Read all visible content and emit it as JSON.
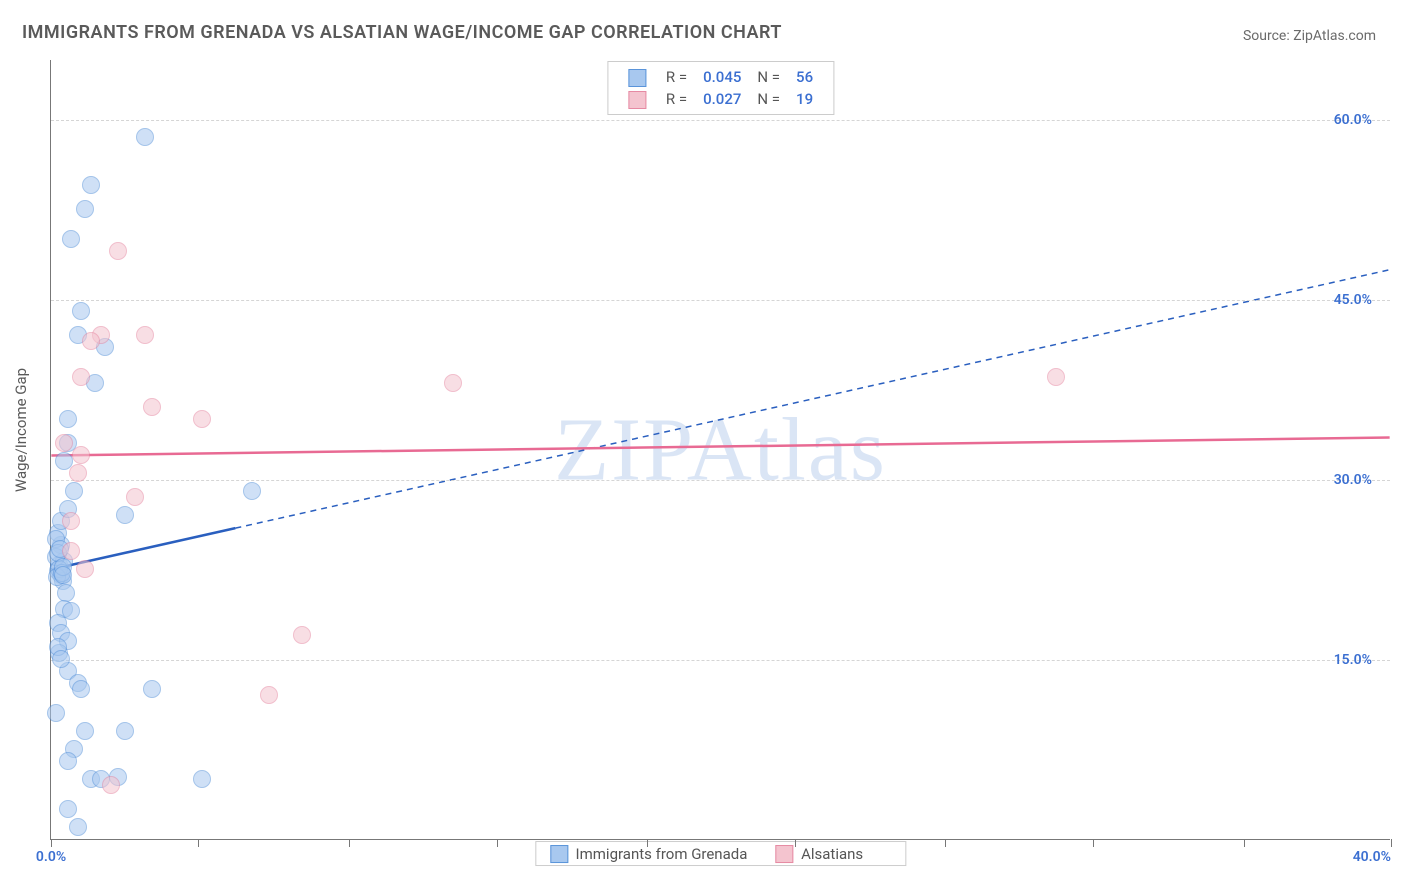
{
  "title": "IMMIGRANTS FROM GRENADA VS ALSATIAN WAGE/INCOME GAP CORRELATION CHART",
  "source": "Source: ZipAtlas.com",
  "watermark": "ZIPAtlas",
  "ylabel": "Wage/Income Gap",
  "chart": {
    "type": "scatter",
    "xlim": [
      0,
      40
    ],
    "ylim": [
      0,
      65
    ],
    "ytick_values": [
      15,
      30,
      45,
      60
    ],
    "ytick_labels": [
      "15.0%",
      "30.0%",
      "45.0%",
      "60.0%"
    ],
    "xtick_positions": [
      0,
      4.4,
      8.9,
      13.3,
      17.8,
      22.2,
      26.7,
      31.1,
      35.6,
      40
    ],
    "xtick_label_first": "0.0%",
    "xtick_label_last": "40.0%",
    "grid_color": "#d5d5d5",
    "background_color": "#ffffff",
    "axis_color": "#777777",
    "point_radius": 9,
    "point_opacity": 0.55
  },
  "series": [
    {
      "name": "Immigrants from Grenada",
      "fill": "#a8c8ef",
      "stroke": "#5a94da",
      "line_color": "#2a5fbf",
      "r": "0.045",
      "n": "56",
      "trend": {
        "x1": 0,
        "y1": 22.5,
        "x2": 40,
        "y2": 47.5,
        "solid_until_x": 5.5
      },
      "points": [
        [
          0.2,
          22.3
        ],
        [
          0.25,
          22.8
        ],
        [
          0.3,
          22.0
        ],
        [
          0.35,
          21.5
        ],
        [
          0.4,
          23.2
        ],
        [
          0.45,
          20.5
        ],
        [
          0.3,
          24.5
        ],
        [
          0.2,
          25.5
        ],
        [
          0.4,
          19.2
        ],
        [
          0.6,
          19.0
        ],
        [
          0.2,
          18.0
        ],
        [
          0.3,
          17.2
        ],
        [
          0.5,
          16.5
        ],
        [
          0.25,
          15.5
        ],
        [
          0.5,
          14.0
        ],
        [
          0.8,
          13.0
        ],
        [
          0.9,
          12.5
        ],
        [
          3.0,
          12.5
        ],
        [
          1.0,
          9.0
        ],
        [
          2.2,
          9.0
        ],
        [
          0.7,
          7.5
        ],
        [
          0.5,
          6.5
        ],
        [
          1.2,
          5.0
        ],
        [
          1.5,
          5.0
        ],
        [
          2.0,
          5.2
        ],
        [
          4.5,
          5.0
        ],
        [
          0.5,
          2.5
        ],
        [
          0.8,
          1.0
        ],
        [
          0.15,
          25.0
        ],
        [
          0.3,
          26.5
        ],
        [
          0.5,
          27.5
        ],
        [
          2.2,
          27.0
        ],
        [
          0.7,
          29.0
        ],
        [
          0.4,
          31.5
        ],
        [
          6.0,
          29.0
        ],
        [
          0.5,
          33.0
        ],
        [
          0.5,
          35.0
        ],
        [
          1.3,
          38.0
        ],
        [
          1.6,
          41.0
        ],
        [
          0.8,
          42.0
        ],
        [
          0.6,
          50.0
        ],
        [
          1.0,
          52.5
        ],
        [
          1.2,
          54.5
        ],
        [
          2.8,
          58.5
        ],
        [
          0.9,
          44.0
        ],
        [
          0.2,
          16.0
        ],
        [
          0.3,
          15.0
        ],
        [
          0.15,
          23.5
        ],
        [
          0.25,
          22.5
        ],
        [
          0.18,
          21.8
        ],
        [
          0.22,
          23.8
        ],
        [
          0.28,
          24.2
        ],
        [
          0.32,
          22.2
        ],
        [
          0.15,
          10.5
        ],
        [
          0.35,
          22.7
        ],
        [
          0.35,
          22.0
        ]
      ]
    },
    {
      "name": "Alsatians",
      "fill": "#f4c4cf",
      "stroke": "#e68aa3",
      "line_color": "#e86a93",
      "r": "0.027",
      "n": "19",
      "trend": {
        "x1": 0,
        "y1": 32.0,
        "x2": 40,
        "y2": 33.5,
        "solid_until_x": 40
      },
      "points": [
        [
          30.0,
          38.5
        ],
        [
          12.0,
          38.0
        ],
        [
          0.6,
          26.5
        ],
        [
          0.6,
          24.0
        ],
        [
          1.5,
          42.0
        ],
        [
          2.8,
          42.0
        ],
        [
          2.0,
          49.0
        ],
        [
          2.5,
          28.5
        ],
        [
          3.0,
          36.0
        ],
        [
          4.5,
          35.0
        ],
        [
          7.5,
          17.0
        ],
        [
          6.5,
          12.0
        ],
        [
          1.8,
          4.5
        ],
        [
          1.2,
          41.5
        ],
        [
          0.4,
          33.0
        ],
        [
          0.8,
          30.5
        ],
        [
          0.9,
          32.0
        ],
        [
          1.0,
          22.5
        ],
        [
          0.9,
          38.5
        ]
      ]
    }
  ],
  "legend_bottom": {
    "items": [
      "Immigrants from Grenada",
      "Alsatians"
    ]
  }
}
